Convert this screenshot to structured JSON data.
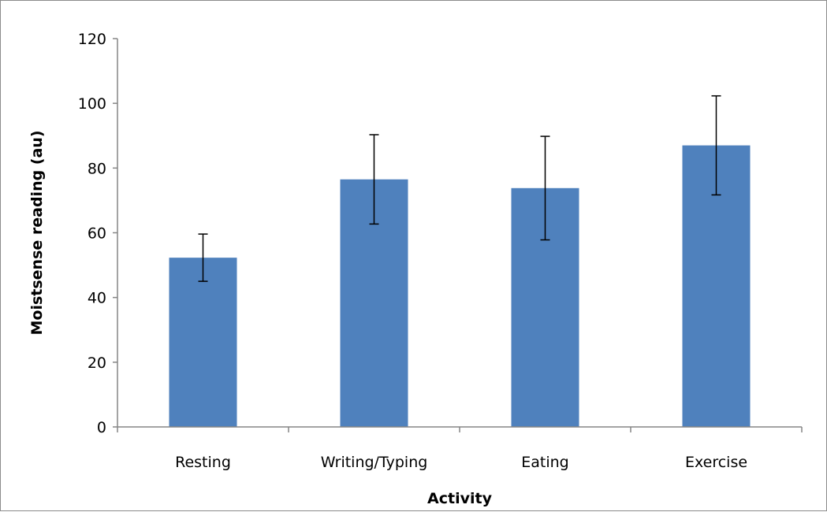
{
  "chart_data": {
    "type": "bar",
    "title": "",
    "xlabel": "Activity",
    "ylabel": "Moistsense reading (au)",
    "ylim": [
      0,
      120
    ],
    "yticks": [
      0,
      20,
      40,
      60,
      80,
      100,
      120
    ],
    "categories": [
      "Resting",
      "Writing/Typing",
      "Eating",
      "Exercise"
    ],
    "values": [
      52.3,
      76.5,
      73.8,
      87
    ],
    "errors": [
      7.3,
      13.8,
      16,
      15.3
    ],
    "bar_color": "#4f81bd",
    "grid": false,
    "legend": "none"
  }
}
